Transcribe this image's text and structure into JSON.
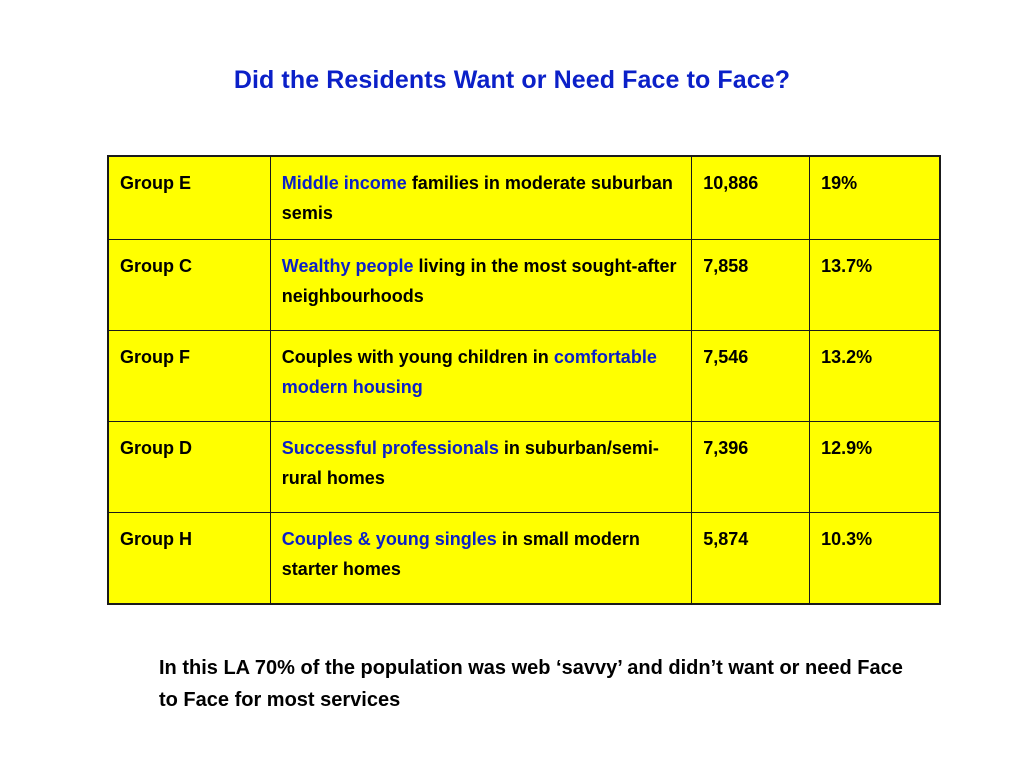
{
  "title": "Did the Residents Want or Need Face to Face?",
  "colors": {
    "title": "#0b20c8",
    "highlight": "#0b20c8",
    "table_fill": "#ffff00",
    "text": "#000000"
  },
  "rows": [
    {
      "group": "Group E",
      "desc_highlight_1": "Middle income",
      "desc_plain_1": " families in moderate suburban semis",
      "desc_highlight_2": "",
      "count": "10,886",
      "percent": "19%"
    },
    {
      "group": "Group C",
      "desc_highlight_1": "Wealthy people",
      "desc_plain_1": " living in the most sought-after neighbourhoods",
      "desc_highlight_2": "",
      "count": "7,858",
      "percent": "13.7%"
    },
    {
      "group": "Group F",
      "desc_highlight_1": "",
      "desc_plain_1": "Couples with young children in ",
      "desc_highlight_2": "comfortable modern housing",
      "count": "7,546",
      "percent": "13.2%"
    },
    {
      "group": "Group D",
      "desc_highlight_1": "Successful professionals",
      "desc_plain_1": " in suburban/semi-rural homes",
      "desc_highlight_2": "",
      "count": "7,396",
      "percent": "12.9%"
    },
    {
      "group": "Group H",
      "desc_highlight_1": "Couples  & young singles",
      "desc_plain_1": " in small modern starter homes",
      "desc_highlight_2": "",
      "count": "5,874",
      "percent": "10.3%"
    }
  ],
  "footnote": "In this LA 70% of the population was web ‘savvy’ and didn’t want or need Face to Face for most services"
}
